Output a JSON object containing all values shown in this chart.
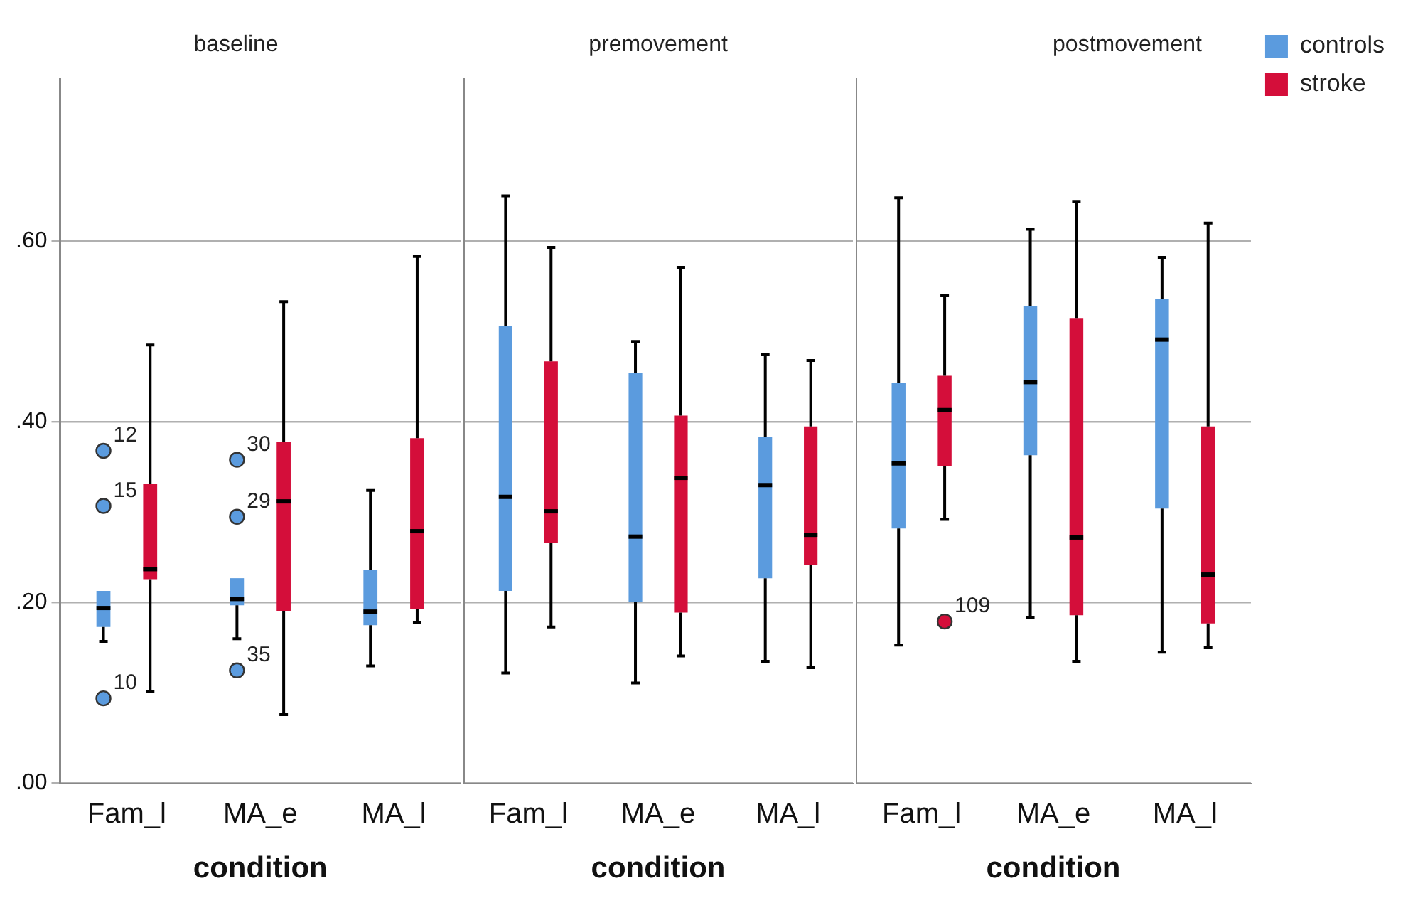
{
  "chart_data": [
    {
      "type": "box",
      "title": "baseline",
      "xlabel": "condition",
      "categories": [
        "Fam_l",
        "MA_e",
        "MA_l"
      ],
      "ylim": [
        0,
        0.78
      ],
      "yticks": [
        {
          "value": 0,
          "label": ".00"
        },
        {
          "value": 0.2,
          "label": ".20"
        },
        {
          "value": 0.4,
          "label": ".40"
        },
        {
          "value": 0.6,
          "label": ".60"
        }
      ],
      "grid": "y",
      "legend": false,
      "series": [
        {
          "color": "#5b9bde",
          "boxes": [
            {
              "low": 0.157,
              "q1": 0.173,
              "median": 0.194,
              "q3": 0.213,
              "high": 0.213,
              "outliers": [
                0.368,
                0.307,
                0.094
              ]
            },
            {
              "low": 0.16,
              "q1": 0.197,
              "median": 0.204,
              "q3": 0.227,
              "high": 0.227,
              "outliers": [
                0.358,
                0.295,
                0.125
              ]
            },
            {
              "low": 0.13,
              "q1": 0.175,
              "median": 0.19,
              "q3": 0.236,
              "high": 0.324
            }
          ]
        },
        {
          "color": "#d40e3a",
          "boxes": [
            {
              "low": 0.102,
              "q1": 0.226,
              "median": 0.237,
              "q3": 0.331,
              "high": 0.485
            },
            {
              "low": 0.076,
              "q1": 0.191,
              "median": 0.312,
              "q3": 0.378,
              "high": 0.533
            },
            {
              "low": 0.178,
              "q1": 0.193,
              "median": 0.279,
              "q3": 0.382,
              "high": 0.583
            }
          ]
        }
      ],
      "annotations": [
        "12",
        "15",
        "10",
        "30",
        "29",
        "35"
      ]
    },
    {
      "type": "box",
      "title": "premovement",
      "xlabel": "condition",
      "categories": [
        "Fam_l",
        "MA_e",
        "MA_l"
      ],
      "ylim": [
        0,
        0.78
      ],
      "yticks": [
        0,
        0.2,
        0.4,
        0.6
      ],
      "tick_labels": "x",
      "grid": "y",
      "legend": false,
      "series": [
        {
          "color": "#5b9bde",
          "boxes": [
            {
              "low": 0.122,
              "q1": 0.213,
              "median": 0.317,
              "q3": 0.506,
              "high": 0.65
            },
            {
              "low": 0.111,
              "q1": 0.201,
              "median": 0.273,
              "q3": 0.454,
              "high": 0.489
            },
            {
              "low": 0.135,
              "q1": 0.227,
              "median": 0.33,
              "q3": 0.383,
              "high": 0.475
            }
          ]
        },
        {
          "color": "#d40e3a",
          "boxes": [
            {
              "low": 0.173,
              "q1": 0.266,
              "median": 0.301,
              "q3": 0.467,
              "high": 0.593
            },
            {
              "low": 0.141,
              "q1": 0.189,
              "median": 0.338,
              "q3": 0.407,
              "high": 0.571
            },
            {
              "low": 0.128,
              "q1": 0.242,
              "median": 0.275,
              "q3": 0.395,
              "high": 0.468
            }
          ]
        }
      ]
    },
    {
      "type": "box",
      "title": "postmovement",
      "xlabel": "condition",
      "categories": [
        "Fam_l",
        "MA_e",
        "MA_l"
      ],
      "ylim": [
        0,
        0.78
      ],
      "yticks": [
        0,
        0.2,
        0.4,
        0.6
      ],
      "tick_labels": "x",
      "grid": "y",
      "legend": "top right",
      "series": [
        {
          "name": "controls",
          "color": "#5b9bde",
          "boxes": [
            {
              "low": 0.153,
              "q1": 0.282,
              "median": 0.354,
              "q3": 0.443,
              "high": 0.648
            },
            {
              "low": 0.183,
              "q1": 0.363,
              "median": 0.444,
              "q3": 0.528,
              "high": 0.613
            },
            {
              "low": 0.145,
              "q1": 0.304,
              "median": 0.491,
              "q3": 0.536,
              "high": 0.582
            }
          ]
        },
        {
          "name": "stroke",
          "color": "#d40e3a",
          "boxes": [
            {
              "low": 0.292,
              "q1": 0.351,
              "median": 0.413,
              "q3": 0.451,
              "high": 0.54,
              "outliers": [
                0.179
              ]
            },
            {
              "low": 0.135,
              "q1": 0.186,
              "median": 0.272,
              "q3": 0.515,
              "high": 0.644
            },
            {
              "low": 0.15,
              "q1": 0.177,
              "median": 0.231,
              "q3": 0.395,
              "high": 0.62
            }
          ]
        }
      ],
      "annotations": [
        "109"
      ]
    }
  ]
}
